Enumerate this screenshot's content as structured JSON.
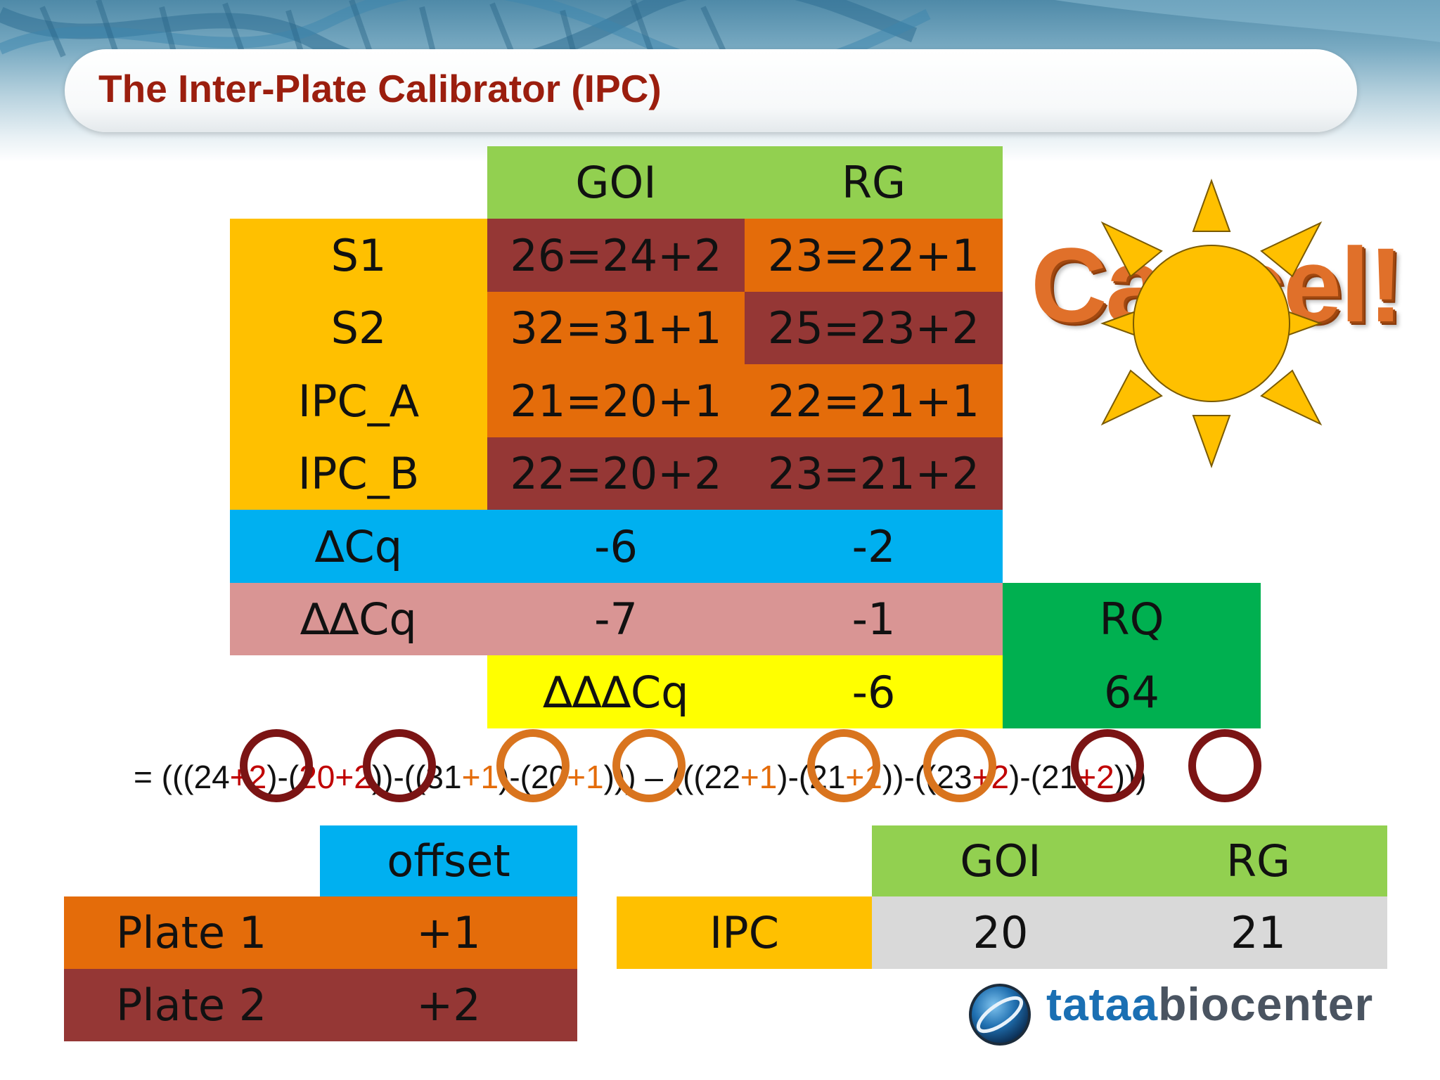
{
  "slide": {
    "title": "The Inter-Plate Calibrator (IPC)"
  },
  "main_table": {
    "col_headers": [
      "GOI",
      "RG"
    ],
    "rows": [
      {
        "label": "S1",
        "goi": "26=24+2",
        "rg": "23=22+1"
      },
      {
        "label": "S2",
        "goi": "32=31+1",
        "rg": "25=23+2"
      },
      {
        "label": "IPC_A",
        "goi": "21=20+1",
        "rg": "22=21+1"
      },
      {
        "label": "IPC_B",
        "goi": "22=20+2",
        "rg": "23=21+2"
      }
    ],
    "delta_cq": {
      "label": "∆Cq",
      "goi": "-6",
      "rg": "-2"
    },
    "delta_delta_cq": {
      "label": "∆∆Cq",
      "goi": "-7",
      "rg": "-1"
    },
    "ddd_cq": {
      "label": "∆∆∆Cq",
      "value": "-6"
    },
    "rq": {
      "label": "RQ",
      "value": "64"
    }
  },
  "formula": {
    "parts": [
      {
        "t": "= (((24",
        "c": "k"
      },
      {
        "t": "+2",
        "c": "r"
      },
      {
        "t": ")-(",
        "c": "k"
      },
      {
        "t": "20",
        "c": "r"
      },
      {
        "t": "+2",
        "c": "r"
      },
      {
        "t": "))-((31",
        "c": "k"
      },
      {
        "t": "+1",
        "c": "o"
      },
      {
        "t": ")-(20",
        "c": "k"
      },
      {
        "t": "+1",
        "c": "o"
      },
      {
        "t": "))) – (((22",
        "c": "k"
      },
      {
        "t": "+1",
        "c": "o"
      },
      {
        "t": ")-(21",
        "c": "k"
      },
      {
        "t": "+1",
        "c": "o"
      },
      {
        "t": "))-((23",
        "c": "k"
      },
      {
        "t": "+2",
        "c": "r"
      },
      {
        "t": ")-(21",
        "c": "k"
      },
      {
        "t": "+2",
        "c": "r"
      },
      {
        "t": ")))",
        "c": "k"
      }
    ]
  },
  "offset_table": {
    "header": "offset",
    "rows": [
      {
        "label": "Plate 1",
        "value": "+1"
      },
      {
        "label": "Plate 2",
        "value": "+2"
      }
    ]
  },
  "ipc_table": {
    "col_headers": [
      "GOI",
      "RG"
    ],
    "row_label": "IPC",
    "goi": "20",
    "rg": "21"
  },
  "cancel_word": "Cancel!",
  "logo": {
    "part1": "tataa",
    "part2": "biocenter"
  },
  "colors": {
    "title": "#9b1e0e",
    "header_green": "#92d050",
    "label_gold": "#ffc000",
    "plate2_dark_red": "#953735",
    "plate1_orange": "#e46c0a",
    "delta_blue": "#00b0f0",
    "ddelta_pink": "#d99594",
    "dddelta_yellow": "#ffff00",
    "rq_green": "#00b050",
    "ipc_gray": "#d9d9d9"
  }
}
